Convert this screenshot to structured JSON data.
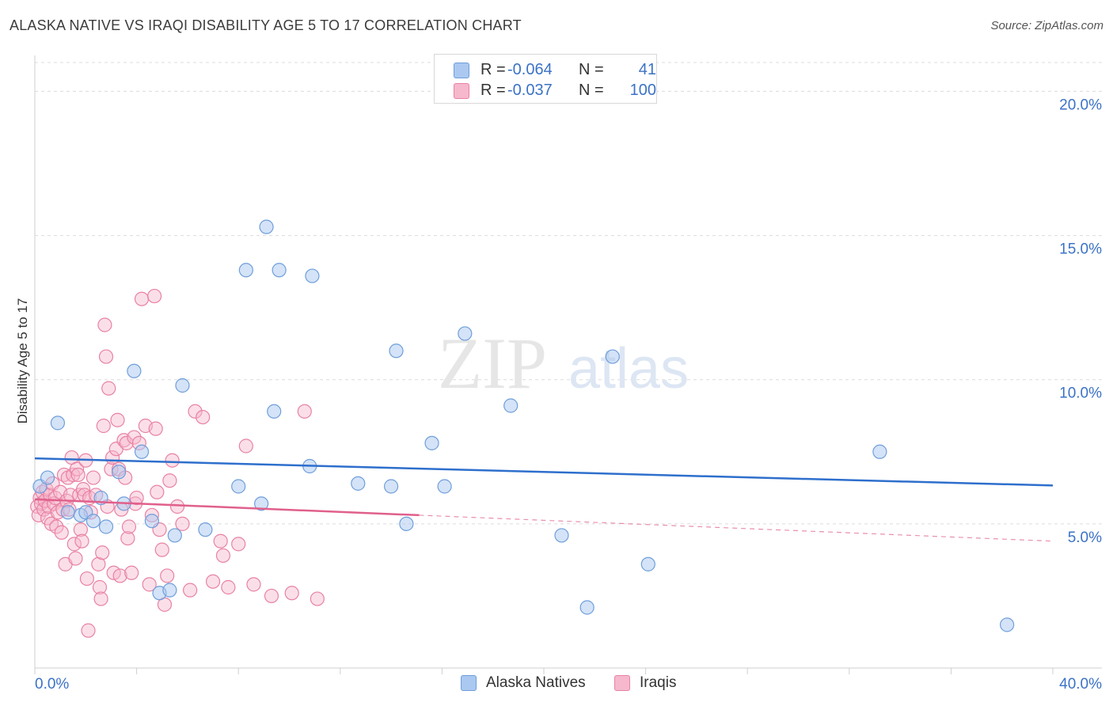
{
  "title": "ALASKA NATIVE VS IRAQI DISABILITY AGE 5 TO 17 CORRELATION CHART",
  "source": "Source: ZipAtlas.com",
  "watermark": {
    "zip": "ZIP",
    "atlas": "atlas"
  },
  "colors": {
    "blue_fill": "#aac8f0",
    "blue_stroke": "#6f9edb",
    "blue_line": "#2e6fcc",
    "pink_fill": "#f6b8cc",
    "pink_stroke": "#e882a4",
    "pink_line": "#e0608c",
    "axis_text": "#3b72c6",
    "grid": "#dcdcdc"
  },
  "legend": {
    "series1": {
      "r_label": "R =",
      "r_value": "-0.064",
      "n_label": "N =",
      "n_value": "41"
    },
    "series2": {
      "r_label": "R =",
      "r_value": "-0.037",
      "n_label": "N =",
      "n_value": "100"
    }
  },
  "bottom_legend": {
    "series1": "Alaska Natives",
    "series2": "Iraqis"
  },
  "chart_data": {
    "type": "scatter",
    "title": "ALASKA NATIVE VS IRAQI DISABILITY AGE 5 TO 17 CORRELATION CHART",
    "xlabel": "",
    "ylabel": "Disability Age 5 to 17",
    "xlim": [
      0,
      40
    ],
    "ylim": [
      0,
      21
    ],
    "x_tick_labels": [
      "0.0%",
      "40.0%"
    ],
    "y_ticks": [
      5,
      10,
      15,
      20
    ],
    "y_tick_labels": [
      "5.0%",
      "10.0%",
      "15.0%",
      "20.0%"
    ],
    "series": [
      {
        "name": "Alaska Natives",
        "r": -0.064,
        "n": 41,
        "trend": {
          "x0": 0,
          "y0": 7.27,
          "x1": 40,
          "y1": 6.33
        },
        "points": [
          [
            0.2,
            6.3
          ],
          [
            0.5,
            6.6
          ],
          [
            0.9,
            8.5
          ],
          [
            1.3,
            5.4
          ],
          [
            1.8,
            5.3
          ],
          [
            2.0,
            5.4
          ],
          [
            2.3,
            5.1
          ],
          [
            2.6,
            5.9
          ],
          [
            2.8,
            4.9
          ],
          [
            3.3,
            6.8
          ],
          [
            3.5,
            5.7
          ],
          [
            3.9,
            10.3
          ],
          [
            4.2,
            7.5
          ],
          [
            4.6,
            5.1
          ],
          [
            4.9,
            2.6
          ],
          [
            5.3,
            2.7
          ],
          [
            5.5,
            4.6
          ],
          [
            5.8,
            9.8
          ],
          [
            6.7,
            4.8
          ],
          [
            8.0,
            6.3
          ],
          [
            8.3,
            13.8
          ],
          [
            8.9,
            5.7
          ],
          [
            9.1,
            15.3
          ],
          [
            9.4,
            8.9
          ],
          [
            9.6,
            13.8
          ],
          [
            10.8,
            7.0
          ],
          [
            10.9,
            13.6
          ],
          [
            12.7,
            6.4
          ],
          [
            14.0,
            6.3
          ],
          [
            14.2,
            11.0
          ],
          [
            14.6,
            5.0
          ],
          [
            15.6,
            7.8
          ],
          [
            16.1,
            6.3
          ],
          [
            16.9,
            11.6
          ],
          [
            18.7,
            9.1
          ],
          [
            20.7,
            4.6
          ],
          [
            21.7,
            2.1
          ],
          [
            22.7,
            10.8
          ],
          [
            24.1,
            3.6
          ],
          [
            33.2,
            7.5
          ],
          [
            38.2,
            1.5
          ]
        ]
      },
      {
        "name": "Iraqis",
        "r": -0.037,
        "n": 100,
        "trend": {
          "x0": 0,
          "y0": 5.85,
          "x1": 15.1,
          "y1": 5.3,
          "dash_x1": 40,
          "dash_y1": 4.4
        },
        "points": [
          [
            0.1,
            5.6
          ],
          [
            0.15,
            5.3
          ],
          [
            0.2,
            5.9
          ],
          [
            0.25,
            5.7
          ],
          [
            0.3,
            6.1
          ],
          [
            0.35,
            5.5
          ],
          [
            0.4,
            5.8
          ],
          [
            0.45,
            6.2
          ],
          [
            0.5,
            5.2
          ],
          [
            0.55,
            5.6
          ],
          [
            0.6,
            6.0
          ],
          [
            0.65,
            5.0
          ],
          [
            0.7,
            6.4
          ],
          [
            0.75,
            5.7
          ],
          [
            0.8,
            5.9
          ],
          [
            0.85,
            4.9
          ],
          [
            0.9,
            5.4
          ],
          [
            1.0,
            6.1
          ],
          [
            1.05,
            4.7
          ],
          [
            1.1,
            5.5
          ],
          [
            1.15,
            6.7
          ],
          [
            1.2,
            3.6
          ],
          [
            1.25,
            5.8
          ],
          [
            1.3,
            6.6
          ],
          [
            1.35,
            5.5
          ],
          [
            1.4,
            6.0
          ],
          [
            1.45,
            7.3
          ],
          [
            1.5,
            6.7
          ],
          [
            1.55,
            4.3
          ],
          [
            1.6,
            3.8
          ],
          [
            1.65,
            6.9
          ],
          [
            1.7,
            6.7
          ],
          [
            1.75,
            6.0
          ],
          [
            1.8,
            4.8
          ],
          [
            1.85,
            4.4
          ],
          [
            1.9,
            6.2
          ],
          [
            1.95,
            6.0
          ],
          [
            2.0,
            7.2
          ],
          [
            2.05,
            3.1
          ],
          [
            2.1,
            1.3
          ],
          [
            2.15,
            5.9
          ],
          [
            2.2,
            5.4
          ],
          [
            2.3,
            6.6
          ],
          [
            2.4,
            6.0
          ],
          [
            2.5,
            3.6
          ],
          [
            2.55,
            2.8
          ],
          [
            2.6,
            2.4
          ],
          [
            2.65,
            4.0
          ],
          [
            2.7,
            8.4
          ],
          [
            2.75,
            11.9
          ],
          [
            2.8,
            10.8
          ],
          [
            2.85,
            5.6
          ],
          [
            2.9,
            9.7
          ],
          [
            3.0,
            6.9
          ],
          [
            3.05,
            7.3
          ],
          [
            3.1,
            3.3
          ],
          [
            3.2,
            7.6
          ],
          [
            3.25,
            8.6
          ],
          [
            3.3,
            6.9
          ],
          [
            3.35,
            3.2
          ],
          [
            3.4,
            5.5
          ],
          [
            3.5,
            7.9
          ],
          [
            3.55,
            6.6
          ],
          [
            3.6,
            7.8
          ],
          [
            3.65,
            4.5
          ],
          [
            3.7,
            4.9
          ],
          [
            3.8,
            3.3
          ],
          [
            3.9,
            8.0
          ],
          [
            3.95,
            5.7
          ],
          [
            4.0,
            5.9
          ],
          [
            4.1,
            7.8
          ],
          [
            4.2,
            12.8
          ],
          [
            4.35,
            8.4
          ],
          [
            4.5,
            2.9
          ],
          [
            4.6,
            5.3
          ],
          [
            4.7,
            12.9
          ],
          [
            4.75,
            8.3
          ],
          [
            4.8,
            6.1
          ],
          [
            4.9,
            4.8
          ],
          [
            5.0,
            4.1
          ],
          [
            5.1,
            2.2
          ],
          [
            5.2,
            3.2
          ],
          [
            5.3,
            6.5
          ],
          [
            5.4,
            7.2
          ],
          [
            5.6,
            5.6
          ],
          [
            5.8,
            5.0
          ],
          [
            6.1,
            2.7
          ],
          [
            6.3,
            8.9
          ],
          [
            6.6,
            8.7
          ],
          [
            7.0,
            3.0
          ],
          [
            7.3,
            4.4
          ],
          [
            7.4,
            3.9
          ],
          [
            7.6,
            2.8
          ],
          [
            8.0,
            4.3
          ],
          [
            8.3,
            7.7
          ],
          [
            8.6,
            2.9
          ],
          [
            9.3,
            2.5
          ],
          [
            10.1,
            2.6
          ],
          [
            10.6,
            8.9
          ],
          [
            11.1,
            2.4
          ]
        ]
      }
    ]
  }
}
